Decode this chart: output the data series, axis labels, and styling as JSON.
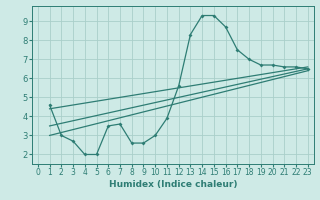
{
  "bg_color": "#ceeae6",
  "grid_color": "#aacfca",
  "line_color": "#2e7d74",
  "xlabel": "Humidex (Indice chaleur)",
  "xlim": [
    -0.5,
    23.5
  ],
  "ylim": [
    1.5,
    9.8
  ],
  "xticks": [
    0,
    1,
    2,
    3,
    4,
    5,
    6,
    7,
    8,
    9,
    10,
    11,
    12,
    13,
    14,
    15,
    16,
    17,
    18,
    19,
    20,
    21,
    22,
    23
  ],
  "yticks": [
    2,
    3,
    4,
    5,
    6,
    7,
    8,
    9
  ],
  "line1_x": [
    1,
    2,
    3,
    4,
    5,
    6,
    7,
    8,
    9,
    10,
    11,
    12,
    13,
    14,
    15,
    16,
    17,
    18,
    19,
    20,
    21,
    22,
    23
  ],
  "line1_y": [
    4.6,
    3.0,
    2.7,
    2.0,
    2.0,
    3.5,
    3.6,
    2.6,
    2.6,
    3.0,
    3.9,
    5.6,
    8.3,
    9.3,
    9.3,
    8.7,
    7.5,
    7.0,
    6.7,
    6.7,
    6.6,
    6.6,
    6.5
  ],
  "line2_x": [
    1,
    23
  ],
  "line2_y": [
    4.4,
    6.6
  ],
  "line3_x": [
    1,
    23
  ],
  "line3_y": [
    3.5,
    6.5
  ],
  "line4_x": [
    1,
    23
  ],
  "line4_y": [
    3.0,
    6.4
  ]
}
